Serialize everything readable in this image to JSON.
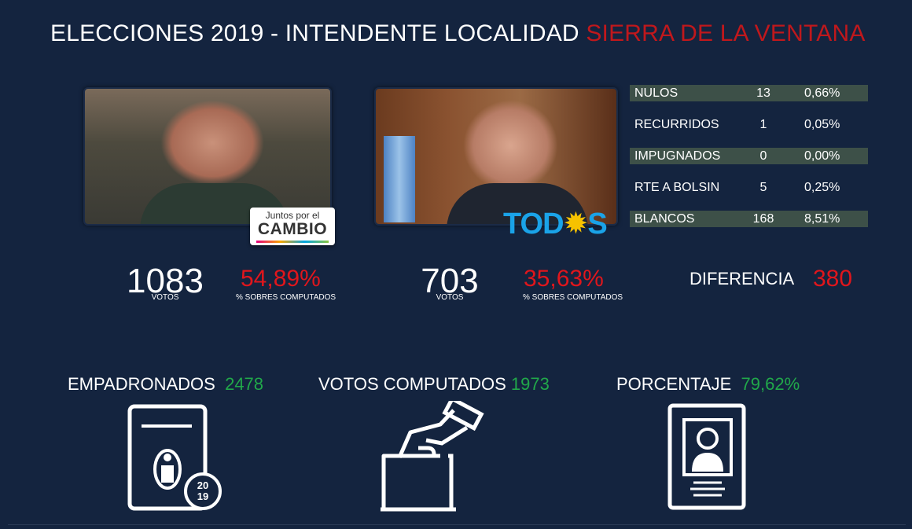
{
  "header": {
    "title_main": "ELECCIONES 2019 - INTENDENTE LOCALIDAD ",
    "title_highlight": "SIERRA DE LA VENTANA",
    "highlight_color": "#c0181c"
  },
  "candidates": [
    {
      "party_logo": {
        "line1": "Juntos por el",
        "line2": "CAMBIO"
      },
      "votes": "1083",
      "votes_label": "VOTOS",
      "percent": "54,89%",
      "percent_label": "% SOBRES COMPUTADOS"
    },
    {
      "party_logo": {
        "text_a": "TOD",
        "sun": "✹",
        "text_b": "S"
      },
      "votes": "703",
      "votes_label": "VOTOS",
      "percent": "35,63%",
      "percent_label": "% SOBRES COMPUTADOS"
    }
  ],
  "stats": [
    {
      "label": "NULOS",
      "count": "13",
      "percent": "0,66%"
    },
    {
      "label": "RECURRIDOS",
      "count": "1",
      "percent": "0,05%"
    },
    {
      "label": "IMPUGNADOS",
      "count": "0",
      "percent": "0,00%"
    },
    {
      "label": "RTE A BOLSIN",
      "count": "5",
      "percent": "0,25%"
    },
    {
      "label": "BLANCOS",
      "count": "168",
      "percent": "8,51%"
    }
  ],
  "difference": {
    "label": "DIFERENCIA",
    "value": "380"
  },
  "totals": {
    "empadronados": {
      "label": "EMPADRONADOS",
      "value": "2478"
    },
    "computados": {
      "label": "VOTOS COMPUTADOS",
      "value": "1973"
    },
    "porcentaje": {
      "label": "PORCENTAJE",
      "value": "79,62%"
    }
  },
  "icons": {
    "padron_year_top": "20",
    "padron_year_bottom": "19"
  },
  "colors": {
    "background": "#14243f",
    "accent_red": "#e0161c",
    "accent_green": "#21a84a",
    "stat_shade": "#3d5048"
  }
}
